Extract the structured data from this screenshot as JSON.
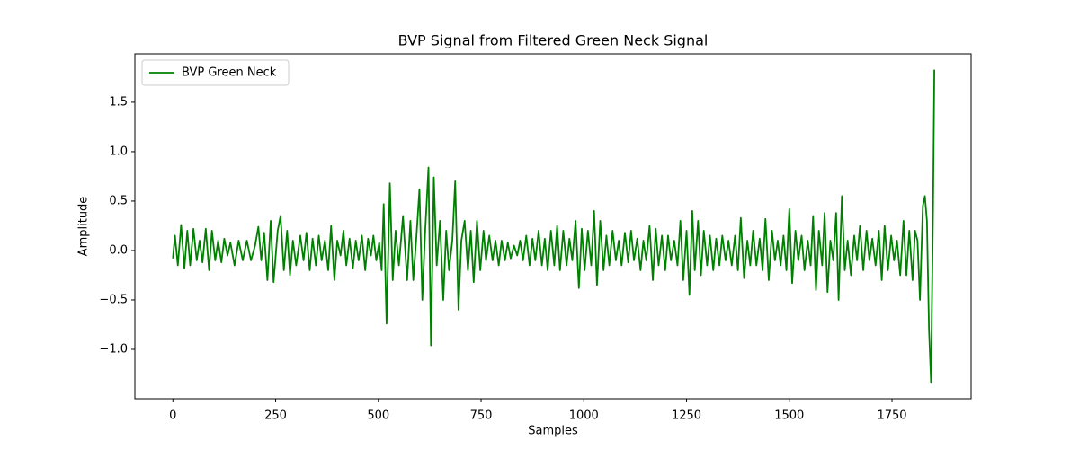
{
  "chart_data": {
    "type": "line",
    "title": "BVP Signal from Filtered Green Neck Signal",
    "xlabel": "Samples",
    "ylabel": "Amplitude",
    "legend": "upper left",
    "grid": false,
    "xlim": [
      -92.5,
      1942.5
    ],
    "ylim": [
      -1.5,
      1.99
    ],
    "xticks": [
      0,
      250,
      500,
      750,
      1000,
      1250,
      1500,
      1750
    ],
    "yticks": [
      {
        "value": -1.0,
        "label": "−1.0"
      },
      {
        "value": -0.5,
        "label": "−0.5"
      },
      {
        "value": 0.0,
        "label": "0.0"
      },
      {
        "value": 0.5,
        "label": "0.5"
      },
      {
        "value": 1.0,
        "label": "1.0"
      },
      {
        "value": 1.5,
        "label": "1.5"
      }
    ],
    "x": [
      0,
      5,
      12,
      20,
      28,
      35,
      42,
      50,
      58,
      65,
      72,
      80,
      88,
      95,
      103,
      110,
      118,
      125,
      133,
      140,
      150,
      160,
      170,
      180,
      190,
      200,
      208,
      215,
      222,
      230,
      238,
      245,
      255,
      262,
      270,
      278,
      285,
      292,
      300,
      310,
      318,
      325,
      333,
      340,
      348,
      355,
      362,
      370,
      378,
      385,
      393,
      400,
      408,
      415,
      422,
      430,
      438,
      445,
      452,
      460,
      468,
      475,
      482,
      488,
      495,
      502,
      508,
      513,
      520,
      528,
      535,
      542,
      550,
      560,
      570,
      578,
      585,
      592,
      600,
      607,
      614,
      622,
      628,
      635,
      642,
      650,
      658,
      665,
      672,
      680,
      687,
      695,
      702,
      710,
      718,
      725,
      732,
      740,
      748,
      756,
      762,
      770,
      778,
      785,
      793,
      800,
      808,
      815,
      822,
      830,
      838,
      845,
      852,
      860,
      868,
      875,
      882,
      890,
      898,
      905,
      912,
      920,
      928,
      935,
      942,
      950,
      958,
      965,
      972,
      980,
      988,
      995,
      1002,
      1010,
      1018,
      1025,
      1032,
      1040,
      1048,
      1055,
      1062,
      1070,
      1078,
      1085,
      1092,
      1100,
      1108,
      1115,
      1122,
      1130,
      1138,
      1145,
      1152,
      1160,
      1168,
      1175,
      1182,
      1190,
      1198,
      1205,
      1212,
      1220,
      1228,
      1235,
      1242,
      1250,
      1257,
      1264,
      1270,
      1278,
      1285,
      1292,
      1300,
      1307,
      1315,
      1322,
      1330,
      1337,
      1345,
      1352,
      1360,
      1368,
      1375,
      1382,
      1390,
      1398,
      1405,
      1412,
      1420,
      1428,
      1435,
      1442,
      1450,
      1458,
      1465,
      1472,
      1479,
      1486,
      1493,
      1500,
      1507,
      1515,
      1522,
      1530,
      1537,
      1545,
      1552,
      1558,
      1565,
      1572,
      1580,
      1586,
      1593,
      1600,
      1607,
      1614,
      1620,
      1628,
      1635,
      1642,
      1650,
      1658,
      1665,
      1672,
      1680,
      1688,
      1695,
      1702,
      1710,
      1718,
      1725,
      1732,
      1740,
      1748,
      1755,
      1762,
      1770,
      1778,
      1785,
      1792,
      1800,
      1806,
      1812,
      1818,
      1825,
      1830,
      1835,
      1840,
      1845,
      1850,
      1853
    ],
    "series": [
      {
        "name": "BVP Green Neck",
        "color": "#008000",
        "values": [
          -0.08,
          0.15,
          -0.15,
          0.26,
          -0.18,
          0.2,
          -0.15,
          0.22,
          -0.1,
          0.1,
          -0.12,
          0.22,
          -0.2,
          0.2,
          -0.1,
          0.1,
          -0.12,
          0.12,
          -0.05,
          0.08,
          -0.15,
          0.1,
          -0.1,
          0.1,
          -0.1,
          0.05,
          0.24,
          -0.1,
          0.18,
          -0.3,
          0.3,
          -0.32,
          0.2,
          0.35,
          -0.2,
          0.2,
          -0.25,
          0.1,
          -0.15,
          0.15,
          -0.1,
          0.18,
          -0.2,
          0.12,
          -0.15,
          0.15,
          -0.1,
          0.1,
          -0.2,
          0.25,
          -0.3,
          0.1,
          -0.05,
          0.2,
          -0.15,
          0.12,
          -0.18,
          0.1,
          -0.1,
          0.15,
          -0.2,
          0.12,
          -0.05,
          0.15,
          -0.1,
          0.08,
          -0.2,
          0.47,
          -0.74,
          0.68,
          -0.3,
          0.2,
          -0.15,
          0.35,
          -0.3,
          0.3,
          -0.3,
          0.1,
          0.62,
          -0.5,
          0.2,
          0.84,
          -0.96,
          0.74,
          -0.15,
          0.3,
          -0.5,
          0.2,
          -0.2,
          0.1,
          0.7,
          -0.6,
          0.1,
          0.3,
          -0.2,
          0.2,
          -0.32,
          0.3,
          -0.2,
          0.2,
          -0.1,
          0.15,
          -0.1,
          0.1,
          -0.15,
          0.1,
          -0.1,
          0.08,
          -0.08,
          0.05,
          -0.05,
          0.1,
          -0.1,
          0.15,
          -0.15,
          0.12,
          -0.1,
          0.2,
          -0.15,
          0.12,
          -0.2,
          0.2,
          -0.15,
          0.25,
          -0.2,
          0.2,
          -0.15,
          0.12,
          -0.1,
          0.3,
          -0.38,
          0.22,
          -0.2,
          0.2,
          -0.15,
          0.4,
          -0.35,
          0.3,
          -0.2,
          0.15,
          -0.15,
          0.2,
          -0.1,
          0.1,
          -0.15,
          0.18,
          -0.12,
          0.2,
          -0.1,
          0.12,
          -0.2,
          0.1,
          -0.1,
          0.25,
          -0.3,
          0.22,
          -0.15,
          0.15,
          -0.2,
          0.15,
          -0.1,
          0.1,
          -0.15,
          0.3,
          -0.3,
          0.2,
          -0.45,
          0.4,
          -0.2,
          0.3,
          -0.25,
          0.2,
          -0.15,
          0.15,
          -0.2,
          0.12,
          -0.15,
          0.15,
          -0.1,
          0.1,
          -0.15,
          0.15,
          -0.2,
          0.33,
          -0.28,
          0.1,
          -0.15,
          0.2,
          -0.15,
          0.12,
          -0.2,
          0.32,
          -0.3,
          0.2,
          -0.1,
          0.1,
          -0.15,
          0.15,
          -0.2,
          0.42,
          -0.33,
          0.2,
          -0.1,
          0.15,
          -0.2,
          0.1,
          -0.15,
          0.35,
          -0.4,
          0.2,
          -0.15,
          0.38,
          -0.42,
          0.1,
          -0.1,
          0.38,
          -0.5,
          0.55,
          -0.2,
          0.1,
          -0.25,
          0.15,
          -0.1,
          0.25,
          -0.2,
          0.2,
          -0.1,
          0.12,
          -0.15,
          0.2,
          -0.3,
          0.25,
          -0.2,
          0.15,
          -0.1,
          0.1,
          -0.25,
          0.3,
          -0.25,
          0.2,
          -0.3,
          0.2,
          0.1,
          -0.5,
          0.45,
          0.55,
          0.3,
          -0.8,
          -1.34,
          0.5,
          1.83
        ]
      }
    ]
  }
}
